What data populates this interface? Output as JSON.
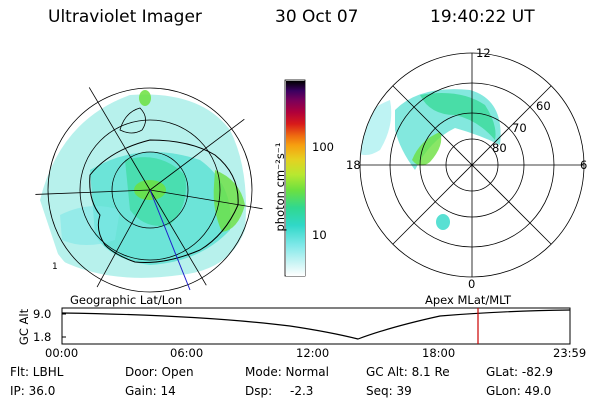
{
  "header": {
    "title": "Ultraviolet Imager",
    "date": "30 Oct 07",
    "time": "19:40:22 UT"
  },
  "left_map": {
    "caption": "Geographic Lat/Lon",
    "corner_label": "1"
  },
  "right_map": {
    "caption": "Apex MLat/MLT",
    "mlt_labels": {
      "top": "12",
      "left": "18",
      "right": "6",
      "bottom": "0"
    },
    "lat_labels": [
      "60",
      "70",
      "80"
    ]
  },
  "colorbar": {
    "unit_label": "photon cm⁻²s⁻¹",
    "ticks": [
      "100",
      "10"
    ],
    "colors": [
      "#000000",
      "#3a0060",
      "#7a005a",
      "#b0003a",
      "#d81a1a",
      "#ee6a10",
      "#f7a010",
      "#e6d020",
      "#b8e830",
      "#6ce040",
      "#30d890",
      "#30d8c8",
      "#7ee8e8",
      "#c8f4f4",
      "#ffffff"
    ]
  },
  "altitude_plot": {
    "ylabel": "GC Alt",
    "yticks": [
      "9.0",
      "1.8"
    ],
    "xticks": [
      "00:00",
      "06:00",
      "12:00",
      "18:00",
      "23:59"
    ],
    "current_time_marker": "19:40",
    "marker_color": "#cc0000"
  },
  "status": {
    "filter": "Flt: LBHL",
    "door": "Door: Open",
    "mode": "Mode: Normal",
    "gc_alt": "GC Alt: 8.1 Re",
    "glat": "GLat: -82.9",
    "ip": "IP: 36.0",
    "gain": "Gain: 14",
    "dsp_label": "Dsp:",
    "dsp_value": "-2.3",
    "seq": "Seq: 39",
    "glon": "GLon: 49.0"
  }
}
